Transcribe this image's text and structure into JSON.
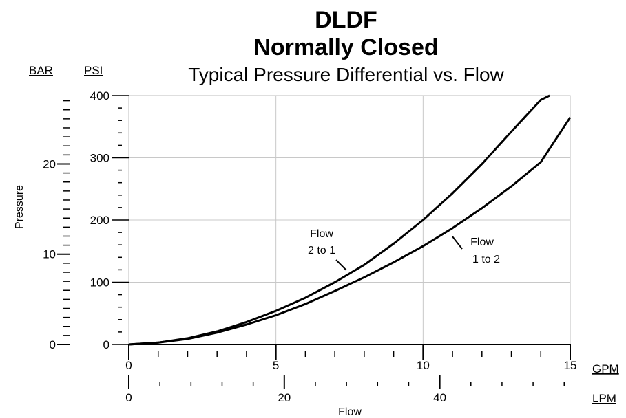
{
  "chart_data": {
    "type": "line",
    "title": "DLDF",
    "subtitle": "Normally Closed",
    "subtitle2": "Typical Pressure Differential vs. Flow",
    "xlabel": "Flow",
    "ylabel": "Pressure",
    "x_units": "GPM",
    "x2_units": "LPM",
    "y_units": "PSI",
    "y2_units": "BAR",
    "xlim": [
      0,
      15
    ],
    "ylim": [
      0,
      400
    ],
    "x_ticks": [
      "0",
      "5",
      "10",
      "15"
    ],
    "x2_ticks": [
      "0",
      "20",
      "40"
    ],
    "y_ticks": [
      "0",
      "100",
      "200",
      "300",
      "400"
    ],
    "y2_ticks": [
      "0",
      "10",
      "20"
    ],
    "grid": true,
    "series": [
      {
        "name": "Flow 2 to 1",
        "label_lines": [
          "Flow",
          "2 to 1"
        ],
        "x": [
          0,
          1,
          2,
          3,
          4,
          5,
          6,
          7,
          8,
          9,
          10,
          11,
          12,
          13,
          14,
          14.3
        ],
        "y": [
          0,
          3,
          10,
          21,
          36,
          54,
          75,
          100,
          128,
          162,
          200,
          243,
          290,
          342,
          393,
          400
        ]
      },
      {
        "name": "Flow 1 to 2",
        "label_lines": [
          "Flow",
          "1 to 2"
        ],
        "x": [
          0,
          1,
          2,
          3,
          4,
          5,
          6,
          7,
          8,
          9,
          10,
          11,
          12,
          13,
          14,
          15
        ],
        "y": [
          0,
          3,
          9,
          19,
          32,
          47,
          65,
          86,
          108,
          132,
          158,
          187,
          219,
          254,
          293,
          365
        ]
      }
    ]
  }
}
